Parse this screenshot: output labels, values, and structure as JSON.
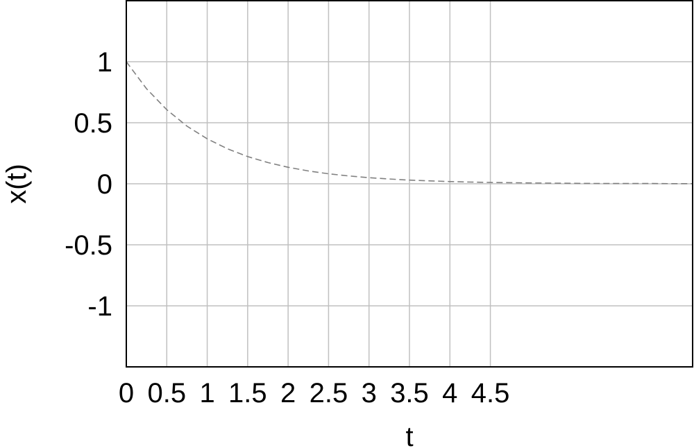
{
  "chart_data": {
    "type": "line",
    "title": "",
    "xlabel": "t",
    "ylabel": "x(t)",
    "xlim": [
      0,
      7
    ],
    "ylim": [
      -1.5,
      1.5
    ],
    "x_ticks": [
      0,
      0.5,
      1,
      1.5,
      2,
      2.5,
      3,
      3.5,
      4,
      4.5
    ],
    "x_tick_labels": [
      "0",
      "0.5",
      "1",
      "1.5",
      "2",
      "2.5",
      "3",
      "3.5",
      "4",
      "4.5"
    ],
    "y_ticks": [
      1,
      0.5,
      0,
      -0.5,
      -1
    ],
    "y_tick_labels": [
      "1",
      "0.5",
      "0",
      "-0.5",
      "-1"
    ],
    "grid": true,
    "series": [
      {
        "style": "dashed",
        "color": "#808080",
        "x": [
          0,
          0.25,
          0.5,
          0.75,
          1,
          1.25,
          1.5,
          1.75,
          2,
          2.25,
          2.5,
          2.75,
          3,
          3.25,
          3.5,
          3.75,
          4,
          4.25,
          4.5,
          4.75,
          5,
          5.25,
          5.5,
          5.75,
          6,
          6.25,
          6.5,
          6.75,
          7
        ],
        "y": [
          1,
          0.779,
          0.607,
          0.472,
          0.368,
          0.287,
          0.223,
          0.174,
          0.135,
          0.105,
          0.082,
          0.064,
          0.05,
          0.039,
          0.03,
          0.024,
          0.018,
          0.014,
          0.011,
          0.009,
          0.007,
          0.005,
          0.004,
          0.003,
          0.002,
          0.002,
          0.002,
          0.001,
          0.001
        ]
      }
    ]
  },
  "colors": {
    "grid": "#c0c0c0",
    "frame": "#000000",
    "series": "#808080"
  }
}
